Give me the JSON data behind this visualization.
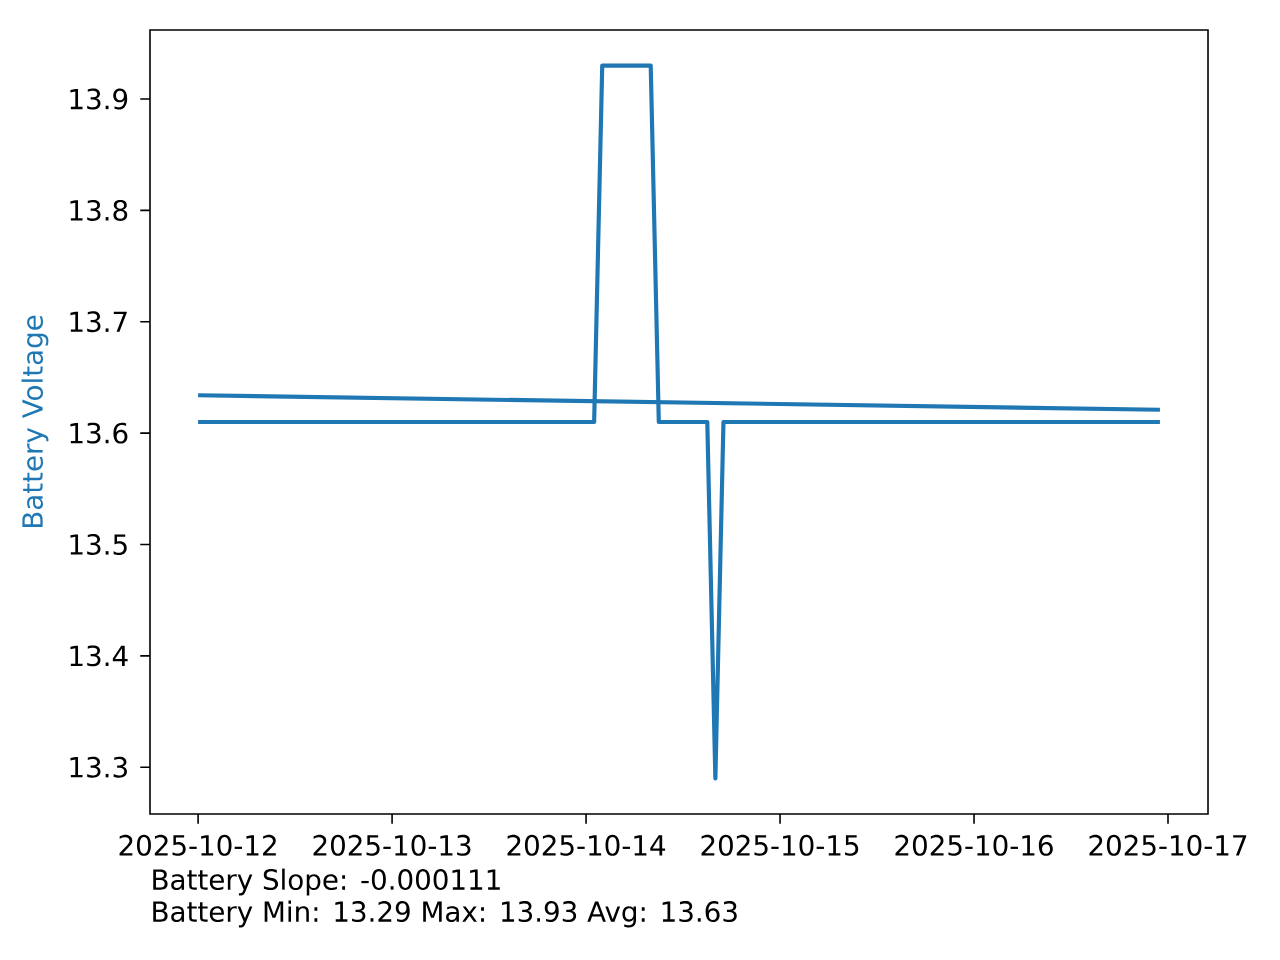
{
  "chart_data": {
    "type": "line",
    "ylabel": "Battery Voltage",
    "annotations": [
      "Battery Slope: -0.000111",
      "Battery Min: 13.29 Max: 13.93 Avg: 13.63"
    ],
    "xlim": [
      "2025-10-11T18:03",
      "2025-10-17T04:57"
    ],
    "xticks": [
      "2025-10-12",
      "2025-10-13",
      "2025-10-14",
      "2025-10-15",
      "2025-10-16",
      "2025-10-17"
    ],
    "ylim": [
      13.258,
      13.962
    ],
    "yticks": [
      13.3,
      13.4,
      13.5,
      13.6,
      13.7,
      13.8,
      13.9
    ],
    "marker": "none",
    "line_style": "solid",
    "series": [
      {
        "color": "#1f77b4",
        "x": [
          "2025-10-12T00:00",
          "2025-10-14T01:00",
          "2025-10-14T02:00",
          "2025-10-14T08:00",
          "2025-10-14T09:00",
          "2025-10-14T15:00",
          "2025-10-14T16:00",
          "2025-10-14T17:00",
          "2025-10-16T23:00"
        ],
        "values": [
          13.61,
          13.61,
          13.93,
          13.93,
          13.61,
          13.61,
          13.29,
          13.61,
          13.61
        ]
      },
      {
        "type": "line",
        "color": "#1f77b4",
        "x": [
          "2025-10-12T00:00",
          "2025-10-16T23:00"
        ],
        "values": [
          13.634,
          13.621
        ]
      }
    ]
  }
}
